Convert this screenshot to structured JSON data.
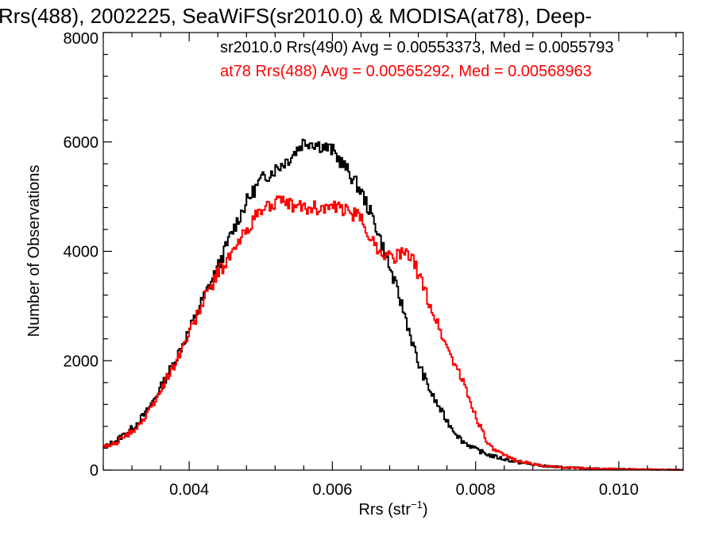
{
  "chart_data": {
    "type": "line",
    "title": "Rrs(488), 2002225, SeaWiFS(sr2010.0) & MODISA(at78), Deep-",
    "xlabel": {
      "base": "Rrs (str",
      "sup": "−1",
      "close": ")"
    },
    "ylabel": "Number of Observations",
    "xlim": [
      0.0028,
      0.0109
    ],
    "ylim": [
      0,
      8000
    ],
    "xticks": [
      0.004,
      0.006,
      0.008,
      0.01
    ],
    "xtick_labels": [
      "0.004",
      "0.006",
      "0.008",
      "0.010"
    ],
    "yticks": [
      0,
      2000,
      4000,
      6000,
      8000
    ],
    "ytick_labels": [
      "0",
      "2000",
      "4000",
      "6000",
      "8000"
    ],
    "legend": [
      {
        "text": "sr2010.0 Rrs(490) Avg = 0.00553373, Med = 0.0055793",
        "color": "#000000"
      },
      {
        "text": "at78 Rrs(488) Avg = 0.00565292, Med = 0.00568963",
        "color": "#ff0000"
      }
    ],
    "legend_placement": "top-right",
    "series": [
      {
        "color": "#000000",
        "x": [
          0.0028,
          0.003,
          0.0032,
          0.0034,
          0.0036,
          0.0038,
          0.004,
          0.0042,
          0.0044,
          0.0046,
          0.0048,
          0.005,
          0.0052,
          0.0054,
          0.0055,
          0.0056,
          0.0057,
          0.0058,
          0.0059,
          0.006,
          0.0062,
          0.0064,
          0.0066,
          0.0068,
          0.007,
          0.0072,
          0.0074,
          0.0076,
          0.0078,
          0.008,
          0.0082,
          0.0084,
          0.0086,
          0.0088,
          0.009,
          0.0092,
          0.0094,
          0.0096,
          0.0098,
          0.01,
          0.0102,
          0.0104,
          0.0106,
          0.0109
        ],
        "y": [
          400,
          560,
          760,
          1050,
          1500,
          2000,
          2550,
          3150,
          3700,
          4350,
          4900,
          5300,
          5500,
          5700,
          5850,
          6000,
          6000,
          5950,
          5900,
          5850,
          5500,
          5100,
          4500,
          3700,
          2900,
          1950,
          1350,
          900,
          550,
          380,
          270,
          200,
          140,
          100,
          70,
          50,
          40,
          30,
          25,
          20,
          15,
          12,
          10,
          5
        ]
      },
      {
        "color": "#ff0000",
        "x": [
          0.0028,
          0.003,
          0.0032,
          0.0034,
          0.0036,
          0.0038,
          0.004,
          0.0042,
          0.0044,
          0.0046,
          0.0048,
          0.005,
          0.0052,
          0.0054,
          0.0056,
          0.0058,
          0.006,
          0.0062,
          0.0064,
          0.0066,
          0.0068,
          0.007,
          0.0071,
          0.0072,
          0.0074,
          0.0076,
          0.0078,
          0.008,
          0.0082,
          0.0084,
          0.0086,
          0.0088,
          0.009,
          0.0092,
          0.0094,
          0.0096,
          0.0098,
          0.01,
          0.0102,
          0.0104,
          0.0106,
          0.0109
        ],
        "y": [
          400,
          520,
          700,
          980,
          1450,
          1950,
          2500,
          3100,
          3600,
          3950,
          4400,
          4750,
          4900,
          4850,
          4800,
          4800,
          4800,
          4750,
          4600,
          4100,
          3900,
          3950,
          3900,
          3600,
          2900,
          2250,
          1700,
          1000,
          420,
          260,
          170,
          110,
          70,
          50,
          40,
          30,
          25,
          20,
          15,
          12,
          10,
          5
        ]
      }
    ]
  }
}
